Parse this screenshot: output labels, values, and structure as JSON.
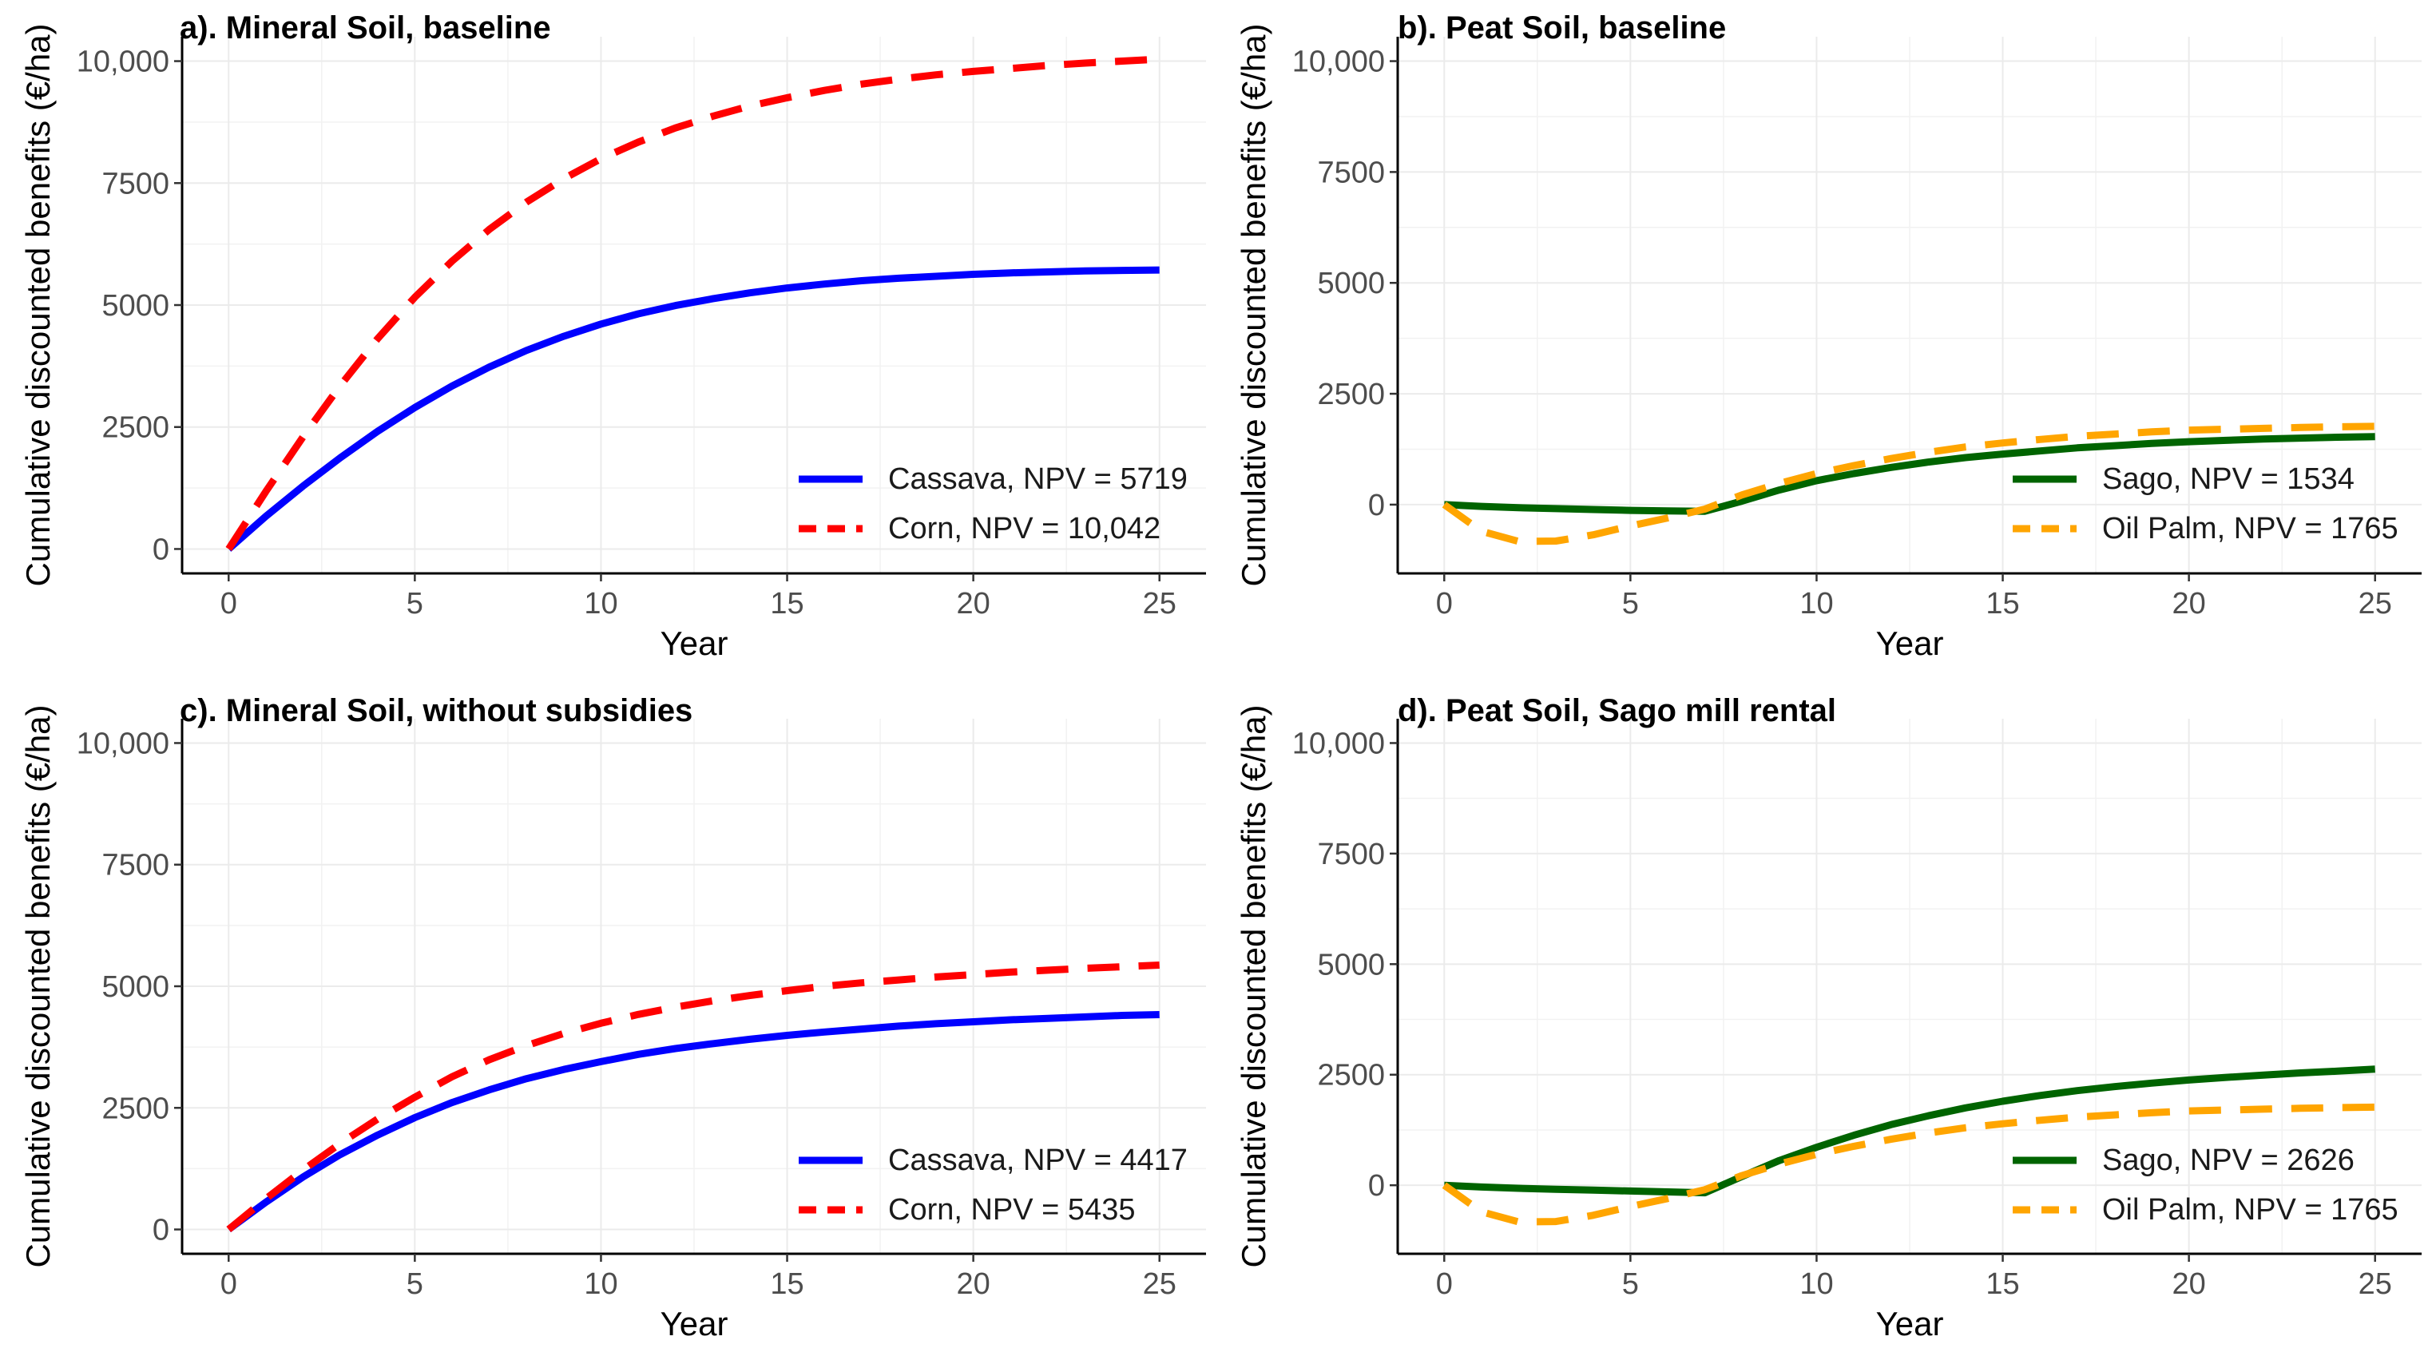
{
  "figure": {
    "y_axis_label": "Cumulative discounted benefits (€/ha)",
    "x_axis_label": "Year",
    "x_ticks": [
      "0",
      "5",
      "10",
      "15",
      "20",
      "25"
    ],
    "y_ticks": [
      "0",
      "2500",
      "5000",
      "7500",
      "10,000"
    ]
  },
  "chart_data": [
    {
      "type": "line",
      "title": "a). Mineral Soil, baseline",
      "xlabel": "Year",
      "ylabel": "Cumulative discounted benefits (€/ha)",
      "xlim": [
        0,
        25
      ],
      "ylim": [
        0,
        10000
      ],
      "x": [
        0,
        1,
        2,
        3,
        4,
        5,
        6,
        7,
        8,
        9,
        10,
        11,
        12,
        13,
        14,
        15,
        16,
        17,
        18,
        19,
        20,
        21,
        22,
        23,
        24,
        25
      ],
      "series": [
        {
          "name": "Cassava",
          "legend": "Cassava, NPV =  5719",
          "color": "#0000ff",
          "dash": "solid",
          "values": [
            0,
            670,
            1290,
            1870,
            2410,
            2900,
            3340,
            3730,
            4070,
            4360,
            4610,
            4820,
            4990,
            5130,
            5250,
            5350,
            5430,
            5500,
            5550,
            5590,
            5630,
            5660,
            5680,
            5700,
            5710,
            5719
          ]
        },
        {
          "name": "Corn",
          "legend": "Corn, NPV = 10,042",
          "color": "#ff0000",
          "dash": "dashed",
          "values": [
            0,
            1180,
            2300,
            3350,
            4310,
            5160,
            5900,
            6550,
            7110,
            7590,
            8000,
            8340,
            8630,
            8870,
            9080,
            9250,
            9400,
            9530,
            9630,
            9720,
            9790,
            9850,
            9910,
            9960,
            10000,
            10042
          ]
        }
      ]
    },
    {
      "type": "line",
      "title": "b). Peat Soil, baseline",
      "xlabel": "Year",
      "ylabel": "Cumulative discounted benefits (€/ha)",
      "xlim": [
        0,
        25
      ],
      "ylim": [
        -1000,
        10000
      ],
      "x": [
        0,
        1,
        2,
        3,
        4,
        5,
        6,
        7,
        8,
        9,
        10,
        11,
        12,
        13,
        14,
        15,
        16,
        17,
        18,
        19,
        20,
        21,
        22,
        23,
        24,
        25
      ],
      "series": [
        {
          "name": "Sago",
          "legend": "Sago, NPV =  1534",
          "color": "#006400",
          "dash": "solid",
          "values": [
            0,
            -40,
            -70,
            -90,
            -110,
            -130,
            -140,
            -150,
            80,
            330,
            540,
            700,
            840,
            960,
            1060,
            1140,
            1210,
            1280,
            1330,
            1380,
            1420,
            1450,
            1480,
            1500,
            1520,
            1534
          ]
        },
        {
          "name": "Oil Palm",
          "legend": "Oil Palm, NPV =  1765",
          "color": "#ffa500",
          "dash": "dashed",
          "values": [
            0,
            -600,
            -830,
            -820,
            -680,
            -480,
            -300,
            -100,
            220,
            480,
            700,
            880,
            1040,
            1180,
            1300,
            1390,
            1470,
            1540,
            1590,
            1640,
            1680,
            1700,
            1720,
            1740,
            1755,
            1765
          ]
        }
      ]
    },
    {
      "type": "line",
      "title": "c). Mineral Soil, without subsidies",
      "xlabel": "Year",
      "ylabel": "Cumulative discounted benefits (€/ha)",
      "xlim": [
        0,
        25
      ],
      "ylim": [
        0,
        10000
      ],
      "x": [
        0,
        1,
        2,
        3,
        4,
        5,
        6,
        7,
        8,
        9,
        10,
        11,
        12,
        13,
        14,
        15,
        16,
        17,
        18,
        19,
        20,
        21,
        22,
        23,
        24,
        25
      ],
      "series": [
        {
          "name": "Cassava",
          "legend": "Cassava, NPV =  4417",
          "color": "#0000ff",
          "dash": "solid",
          "values": [
            0,
            560,
            1080,
            1540,
            1940,
            2300,
            2610,
            2870,
            3100,
            3290,
            3450,
            3600,
            3720,
            3820,
            3910,
            3990,
            4060,
            4120,
            4180,
            4230,
            4270,
            4310,
            4340,
            4370,
            4400,
            4417
          ]
        },
        {
          "name": "Corn",
          "legend": "Corn, NPV =  5435",
          "color": "#ff0000",
          "dash": "dashed",
          "values": [
            0,
            630,
            1220,
            1770,
            2270,
            2720,
            3140,
            3490,
            3780,
            4030,
            4240,
            4420,
            4570,
            4700,
            4810,
            4910,
            5000,
            5070,
            5130,
            5190,
            5240,
            5290,
            5330,
            5370,
            5400,
            5435
          ]
        }
      ]
    },
    {
      "type": "line",
      "title": "d). Peat Soil, Sago mill rental",
      "xlabel": "Year",
      "ylabel": "Cumulative discounted benefits (€/ha)",
      "xlim": [
        0,
        25
      ],
      "ylim": [
        -1000,
        10000
      ],
      "x": [
        0,
        1,
        2,
        3,
        4,
        5,
        6,
        7,
        8,
        9,
        10,
        11,
        12,
        13,
        14,
        15,
        16,
        17,
        18,
        19,
        20,
        21,
        22,
        23,
        24,
        25
      ],
      "series": [
        {
          "name": "Sago",
          "legend": "Sago, NPV =  2626",
          "color": "#006400",
          "dash": "solid",
          "values": [
            0,
            -40,
            -70,
            -90,
            -110,
            -130,
            -150,
            -170,
            200,
            560,
            860,
            1130,
            1370,
            1570,
            1750,
            1900,
            2030,
            2140,
            2230,
            2310,
            2380,
            2440,
            2490,
            2540,
            2580,
            2626
          ]
        },
        {
          "name": "Oil Palm",
          "legend": "Oil Palm, NPV =  1765",
          "color": "#ffa500",
          "dash": "dashed",
          "values": [
            0,
            -600,
            -830,
            -820,
            -680,
            -480,
            -300,
            -100,
            220,
            480,
            700,
            880,
            1040,
            1180,
            1300,
            1390,
            1470,
            1540,
            1590,
            1640,
            1680,
            1700,
            1720,
            1740,
            1755,
            1765
          ]
        }
      ]
    }
  ]
}
